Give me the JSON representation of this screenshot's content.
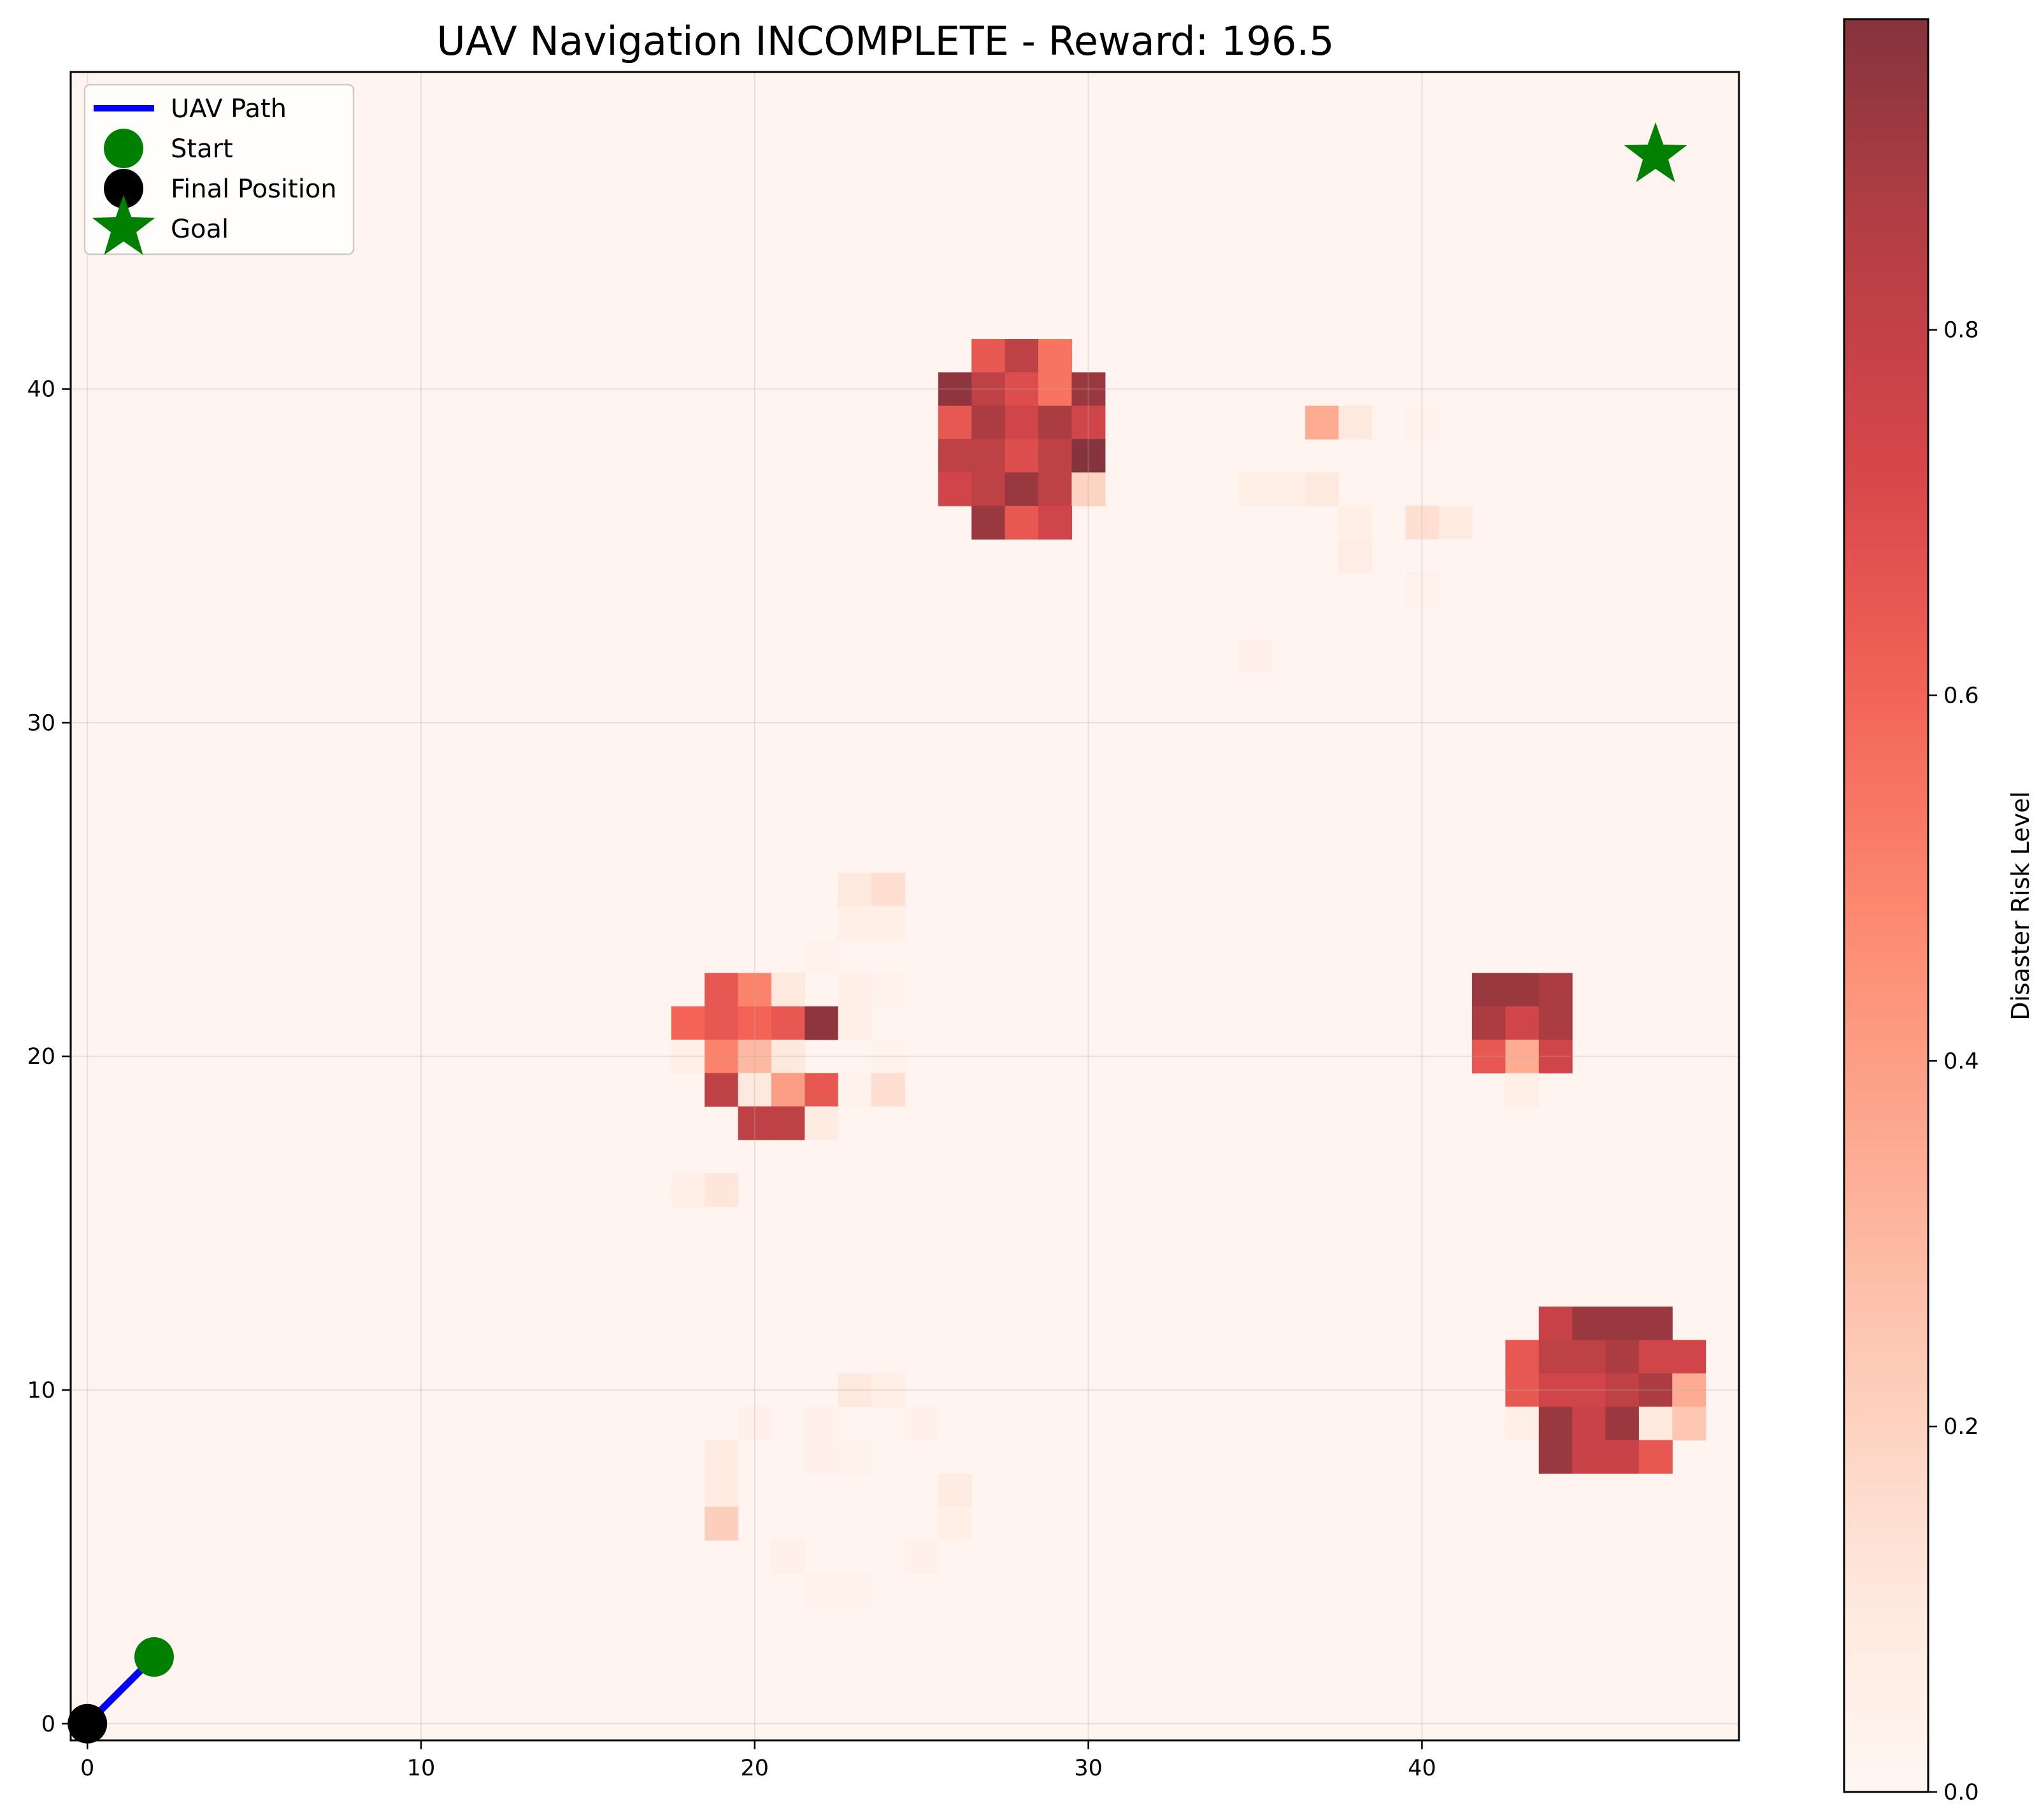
{
  "chart_data": {
    "type": "heatmap",
    "title": "UAV Navigation INCOMPLETE - Reward: 196.5",
    "xlabel": "",
    "ylabel": "",
    "xlim": [
      -0.5,
      49.5
    ],
    "ylim": [
      -0.5,
      49.5
    ],
    "xticks": [
      0,
      10,
      20,
      30,
      40
    ],
    "yticks": [
      0,
      10,
      20,
      30,
      40
    ],
    "grid": true,
    "colormap": "Reds",
    "colormap_alpha": 0.8,
    "grid_size": [
      50,
      50
    ],
    "background_value": 0.02,
    "colorbar": {
      "label": "Disaster Risk Level",
      "range": [
        0.0,
        0.97
      ],
      "ticks": [
        0.0,
        0.2,
        0.4,
        0.6,
        0.8
      ],
      "tick_labels": [
        "0.0",
        "0.2",
        "0.4",
        "0.6",
        "0.8"
      ]
    },
    "risk_cells": [
      {
        "x": 27,
        "y": 41,
        "v": 0.65
      },
      {
        "x": 28,
        "y": 41,
        "v": 0.82
      },
      {
        "x": 29,
        "y": 41,
        "v": 0.55
      },
      {
        "x": 26,
        "y": 40,
        "v": 0.95
      },
      {
        "x": 27,
        "y": 40,
        "v": 0.82
      },
      {
        "x": 28,
        "y": 40,
        "v": 0.7
      },
      {
        "x": 29,
        "y": 40,
        "v": 0.55
      },
      {
        "x": 30,
        "y": 40,
        "v": 0.92
      },
      {
        "x": 26,
        "y": 39,
        "v": 0.65
      },
      {
        "x": 27,
        "y": 39,
        "v": 0.88
      },
      {
        "x": 28,
        "y": 39,
        "v": 0.75
      },
      {
        "x": 29,
        "y": 39,
        "v": 0.88
      },
      {
        "x": 30,
        "y": 39,
        "v": 0.75
      },
      {
        "x": 26,
        "y": 38,
        "v": 0.82
      },
      {
        "x": 27,
        "y": 38,
        "v": 0.82
      },
      {
        "x": 28,
        "y": 38,
        "v": 0.7
      },
      {
        "x": 29,
        "y": 38,
        "v": 0.82
      },
      {
        "x": 30,
        "y": 38,
        "v": 0.97
      },
      {
        "x": 26,
        "y": 37,
        "v": 0.75
      },
      {
        "x": 27,
        "y": 37,
        "v": 0.82
      },
      {
        "x": 28,
        "y": 37,
        "v": 0.92
      },
      {
        "x": 29,
        "y": 37,
        "v": 0.82
      },
      {
        "x": 30,
        "y": 37,
        "v": 0.2
      },
      {
        "x": 27,
        "y": 36,
        "v": 0.92
      },
      {
        "x": 28,
        "y": 36,
        "v": 0.65
      },
      {
        "x": 29,
        "y": 36,
        "v": 0.75
      },
      {
        "x": 37,
        "y": 39,
        "v": 0.35
      },
      {
        "x": 38,
        "y": 39,
        "v": 0.1
      },
      {
        "x": 40,
        "y": 39,
        "v": 0.04
      },
      {
        "x": 35,
        "y": 37,
        "v": 0.06
      },
      {
        "x": 36,
        "y": 37,
        "v": 0.06
      },
      {
        "x": 37,
        "y": 37,
        "v": 0.1
      },
      {
        "x": 38,
        "y": 36,
        "v": 0.06
      },
      {
        "x": 40,
        "y": 36,
        "v": 0.15
      },
      {
        "x": 41,
        "y": 36,
        "v": 0.08
      },
      {
        "x": 38,
        "y": 35,
        "v": 0.07
      },
      {
        "x": 40,
        "y": 34,
        "v": 0.04
      },
      {
        "x": 35,
        "y": 32,
        "v": 0.05
      },
      {
        "x": 23,
        "y": 25,
        "v": 0.1
      },
      {
        "x": 24,
        "y": 25,
        "v": 0.15
      },
      {
        "x": 23,
        "y": 24,
        "v": 0.06
      },
      {
        "x": 24,
        "y": 24,
        "v": 0.06
      },
      {
        "x": 22,
        "y": 23,
        "v": 0.04
      },
      {
        "x": 23,
        "y": 22,
        "v": 0.06
      },
      {
        "x": 24,
        "y": 22,
        "v": 0.04
      },
      {
        "x": 19,
        "y": 22,
        "v": 0.65
      },
      {
        "x": 20,
        "y": 22,
        "v": 0.5
      },
      {
        "x": 21,
        "y": 22,
        "v": 0.1
      },
      {
        "x": 18,
        "y": 21,
        "v": 0.6
      },
      {
        "x": 19,
        "y": 21,
        "v": 0.65
      },
      {
        "x": 20,
        "y": 21,
        "v": 0.6
      },
      {
        "x": 21,
        "y": 21,
        "v": 0.65
      },
      {
        "x": 22,
        "y": 21,
        "v": 0.95
      },
      {
        "x": 23,
        "y": 21,
        "v": 0.06
      },
      {
        "x": 18,
        "y": 20,
        "v": 0.06
      },
      {
        "x": 19,
        "y": 20,
        "v": 0.5
      },
      {
        "x": 20,
        "y": 20,
        "v": 0.3
      },
      {
        "x": 21,
        "y": 20,
        "v": 0.1
      },
      {
        "x": 24,
        "y": 20,
        "v": 0.04
      },
      {
        "x": 19,
        "y": 19,
        "v": 0.82
      },
      {
        "x": 20,
        "y": 19,
        "v": 0.1
      },
      {
        "x": 21,
        "y": 19,
        "v": 0.4
      },
      {
        "x": 22,
        "y": 19,
        "v": 0.65
      },
      {
        "x": 23,
        "y": 19,
        "v": 0.04
      },
      {
        "x": 24,
        "y": 19,
        "v": 0.15
      },
      {
        "x": 20,
        "y": 18,
        "v": 0.82
      },
      {
        "x": 21,
        "y": 18,
        "v": 0.82
      },
      {
        "x": 22,
        "y": 18,
        "v": 0.08
      },
      {
        "x": 18,
        "y": 16,
        "v": 0.06
      },
      {
        "x": 19,
        "y": 16,
        "v": 0.12
      },
      {
        "x": 42,
        "y": 22,
        "v": 0.92
      },
      {
        "x": 43,
        "y": 22,
        "v": 0.92
      },
      {
        "x": 44,
        "y": 22,
        "v": 0.88
      },
      {
        "x": 42,
        "y": 21,
        "v": 0.88
      },
      {
        "x": 43,
        "y": 21,
        "v": 0.75
      },
      {
        "x": 44,
        "y": 21,
        "v": 0.88
      },
      {
        "x": 42,
        "y": 20,
        "v": 0.65
      },
      {
        "x": 43,
        "y": 20,
        "v": 0.35
      },
      {
        "x": 44,
        "y": 20,
        "v": 0.75
      },
      {
        "x": 43,
        "y": 19,
        "v": 0.06
      },
      {
        "x": 44,
        "y": 12,
        "v": 0.78
      },
      {
        "x": 45,
        "y": 12,
        "v": 0.92
      },
      {
        "x": 46,
        "y": 12,
        "v": 0.92
      },
      {
        "x": 47,
        "y": 12,
        "v": 0.92
      },
      {
        "x": 43,
        "y": 11,
        "v": 0.65
      },
      {
        "x": 44,
        "y": 11,
        "v": 0.82
      },
      {
        "x": 45,
        "y": 11,
        "v": 0.82
      },
      {
        "x": 46,
        "y": 11,
        "v": 0.88
      },
      {
        "x": 47,
        "y": 11,
        "v": 0.75
      },
      {
        "x": 48,
        "y": 11,
        "v": 0.75
      },
      {
        "x": 43,
        "y": 10,
        "v": 0.65
      },
      {
        "x": 44,
        "y": 10,
        "v": 0.75
      },
      {
        "x": 45,
        "y": 10,
        "v": 0.75
      },
      {
        "x": 46,
        "y": 10,
        "v": 0.82
      },
      {
        "x": 47,
        "y": 10,
        "v": 0.88
      },
      {
        "x": 48,
        "y": 10,
        "v": 0.35
      },
      {
        "x": 43,
        "y": 9,
        "v": 0.06
      },
      {
        "x": 44,
        "y": 9,
        "v": 0.92
      },
      {
        "x": 45,
        "y": 9,
        "v": 0.78
      },
      {
        "x": 46,
        "y": 9,
        "v": 0.92
      },
      {
        "x": 47,
        "y": 9,
        "v": 0.1
      },
      {
        "x": 48,
        "y": 9,
        "v": 0.25
      },
      {
        "x": 44,
        "y": 8,
        "v": 0.92
      },
      {
        "x": 45,
        "y": 8,
        "v": 0.78
      },
      {
        "x": 46,
        "y": 8,
        "v": 0.78
      },
      {
        "x": 47,
        "y": 8,
        "v": 0.65
      },
      {
        "x": 23,
        "y": 10,
        "v": 0.1
      },
      {
        "x": 24,
        "y": 10,
        "v": 0.06
      },
      {
        "x": 20,
        "y": 9,
        "v": 0.05
      },
      {
        "x": 22,
        "y": 9,
        "v": 0.05
      },
      {
        "x": 25,
        "y": 9,
        "v": 0.05
      },
      {
        "x": 19,
        "y": 8,
        "v": 0.08
      },
      {
        "x": 22,
        "y": 8,
        "v": 0.05
      },
      {
        "x": 23,
        "y": 8,
        "v": 0.04
      },
      {
        "x": 19,
        "y": 7,
        "v": 0.08
      },
      {
        "x": 26,
        "y": 7,
        "v": 0.08
      },
      {
        "x": 19,
        "y": 6,
        "v": 0.22
      },
      {
        "x": 26,
        "y": 6,
        "v": 0.06
      },
      {
        "x": 21,
        "y": 5,
        "v": 0.05
      },
      {
        "x": 25,
        "y": 5,
        "v": 0.05
      },
      {
        "x": 22,
        "y": 4,
        "v": 0.04
      },
      {
        "x": 23,
        "y": 4,
        "v": 0.04
      }
    ],
    "series": [
      {
        "name": "UAV Path",
        "kind": "line",
        "color": "#0000ff",
        "points": [
          [
            2,
            2
          ],
          [
            0,
            0
          ]
        ]
      },
      {
        "name": "Start",
        "kind": "marker",
        "marker": "circle",
        "color": "#008000",
        "points": [
          [
            2,
            2
          ]
        ]
      },
      {
        "name": "Final Position",
        "kind": "marker",
        "marker": "circle",
        "color": "#000000",
        "points": [
          [
            0,
            0
          ]
        ]
      },
      {
        "name": "Goal",
        "kind": "marker",
        "marker": "star",
        "color": "#008000",
        "points": [
          [
            47,
            47
          ]
        ]
      }
    ],
    "legend": {
      "position": "upper-left",
      "entries": [
        "UAV Path",
        "Start",
        "Final Position",
        "Goal"
      ]
    }
  }
}
